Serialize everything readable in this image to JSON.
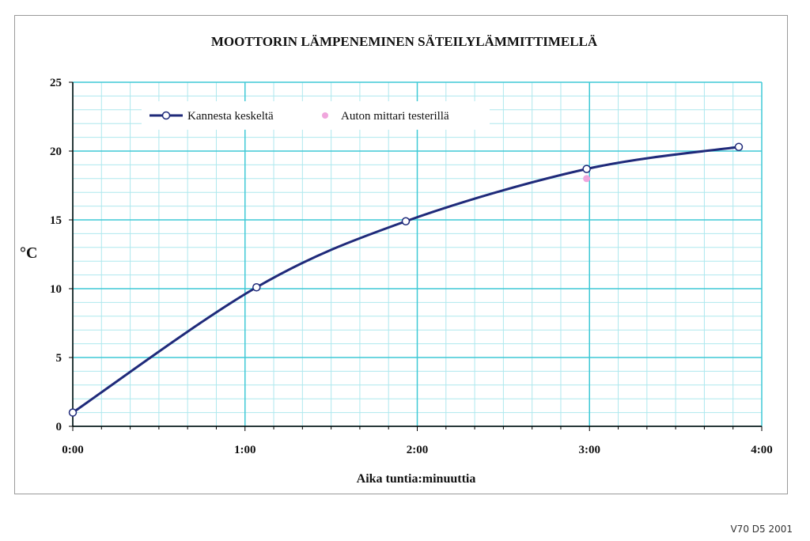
{
  "footer_note": "V70 D5 2001",
  "colors": {
    "line": "#1f2a7a",
    "secondary_point": "#f0a6dd",
    "grid_major": "#3fc9d6",
    "grid_minor": "#aee8ee",
    "axis": "#000000"
  },
  "chart_data": {
    "type": "line",
    "title": "MOOTTORIN LÄMPENEMINEN SÄTEILYLÄMMITTIMELLÄ",
    "xlabel": "Aika tuntia:minuuttia",
    "ylabel": "°C",
    "x_unit": "minutes",
    "xlim": [
      0,
      240
    ],
    "ylim": [
      0,
      25
    ],
    "x_ticks": [
      {
        "value": 0,
        "label": "0:00"
      },
      {
        "value": 60,
        "label": "1:00"
      },
      {
        "value": 120,
        "label": "2:00"
      },
      {
        "value": 180,
        "label": "3:00"
      },
      {
        "value": 240,
        "label": "4:00"
      }
    ],
    "y_ticks": [
      0,
      5,
      10,
      15,
      20,
      25
    ],
    "grid": true,
    "legend_position": "top-left",
    "series": [
      {
        "name": "Kannesta keskeltä",
        "style": "line-with-markers",
        "color": "#1f2a7a",
        "x": [
          0,
          64,
          116,
          179,
          232
        ],
        "y": [
          1.0,
          10.1,
          14.9,
          18.7,
          20.3
        ]
      },
      {
        "name": "Auton mittari testerillä",
        "style": "markers",
        "color": "#f0a6dd",
        "x": [
          179
        ],
        "y": [
          18.0
        ]
      }
    ]
  }
}
